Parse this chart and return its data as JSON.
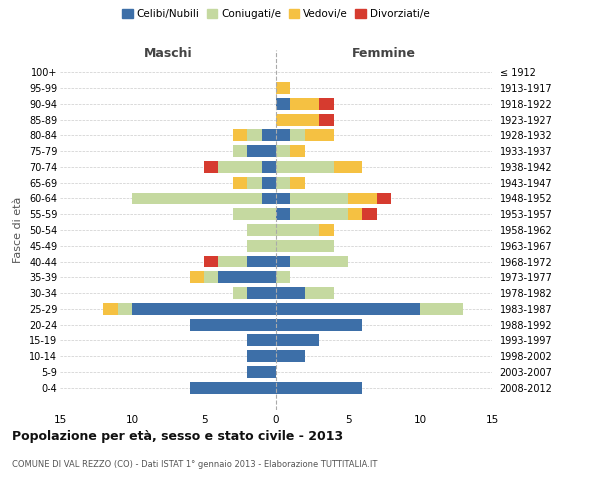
{
  "age_groups": [
    "0-4",
    "5-9",
    "10-14",
    "15-19",
    "20-24",
    "25-29",
    "30-34",
    "35-39",
    "40-44",
    "45-49",
    "50-54",
    "55-59",
    "60-64",
    "65-69",
    "70-74",
    "75-79",
    "80-84",
    "85-89",
    "90-94",
    "95-99",
    "100+"
  ],
  "birth_years": [
    "2008-2012",
    "2003-2007",
    "1998-2002",
    "1993-1997",
    "1988-1992",
    "1983-1987",
    "1978-1982",
    "1973-1977",
    "1968-1972",
    "1963-1967",
    "1958-1962",
    "1953-1957",
    "1948-1952",
    "1943-1947",
    "1938-1942",
    "1933-1937",
    "1928-1932",
    "1923-1927",
    "1918-1922",
    "1913-1917",
    "≤ 1912"
  ],
  "colors": {
    "celibi": "#3d6fa8",
    "coniugati": "#c5d9a0",
    "vedovi": "#f5c142",
    "divorziati": "#d63b2f"
  },
  "maschi": {
    "celibi": [
      6,
      2,
      2,
      2,
      6,
      10,
      2,
      4,
      2,
      0,
      0,
      0,
      1,
      1,
      1,
      2,
      1,
      0,
      0,
      0,
      0
    ],
    "coniugati": [
      0,
      0,
      0,
      0,
      0,
      1,
      1,
      1,
      2,
      2,
      2,
      3,
      9,
      1,
      3,
      1,
      1,
      0,
      0,
      0,
      0
    ],
    "vedovi": [
      0,
      0,
      0,
      0,
      0,
      1,
      0,
      1,
      0,
      0,
      0,
      0,
      0,
      1,
      0,
      0,
      1,
      0,
      0,
      0,
      0
    ],
    "divorziati": [
      0,
      0,
      0,
      0,
      0,
      0,
      0,
      0,
      1,
      0,
      0,
      0,
      0,
      0,
      1,
      0,
      0,
      0,
      0,
      0,
      0
    ]
  },
  "femmine": {
    "celibi": [
      6,
      0,
      2,
      3,
      6,
      10,
      2,
      0,
      1,
      0,
      0,
      1,
      1,
      0,
      0,
      0,
      1,
      0,
      1,
      0,
      0
    ],
    "coniugati": [
      0,
      0,
      0,
      0,
      0,
      3,
      2,
      1,
      4,
      4,
      3,
      4,
      4,
      1,
      4,
      1,
      1,
      0,
      0,
      0,
      0
    ],
    "vedovi": [
      0,
      0,
      0,
      0,
      0,
      0,
      0,
      0,
      0,
      0,
      1,
      1,
      2,
      1,
      2,
      1,
      2,
      3,
      2,
      1,
      0
    ],
    "divorziati": [
      0,
      0,
      0,
      0,
      0,
      0,
      0,
      0,
      0,
      0,
      0,
      1,
      1,
      0,
      0,
      0,
      0,
      1,
      1,
      0,
      0
    ]
  },
  "xlim": 15,
  "title": "Popolazione per età, sesso e stato civile - 2013",
  "subtitle": "COMUNE DI VAL REZZO (CO) - Dati ISTAT 1° gennaio 2013 - Elaborazione TUTTITALIA.IT",
  "xlabel_left": "Maschi",
  "xlabel_right": "Femmine",
  "ylabel_left": "Fasce di età",
  "legend_labels": [
    "Celibi/Nubili",
    "Coniugati/e",
    "Vedovi/e",
    "Divorziati/e"
  ],
  "bg_color": "#ffffff",
  "grid_color": "#cccccc"
}
